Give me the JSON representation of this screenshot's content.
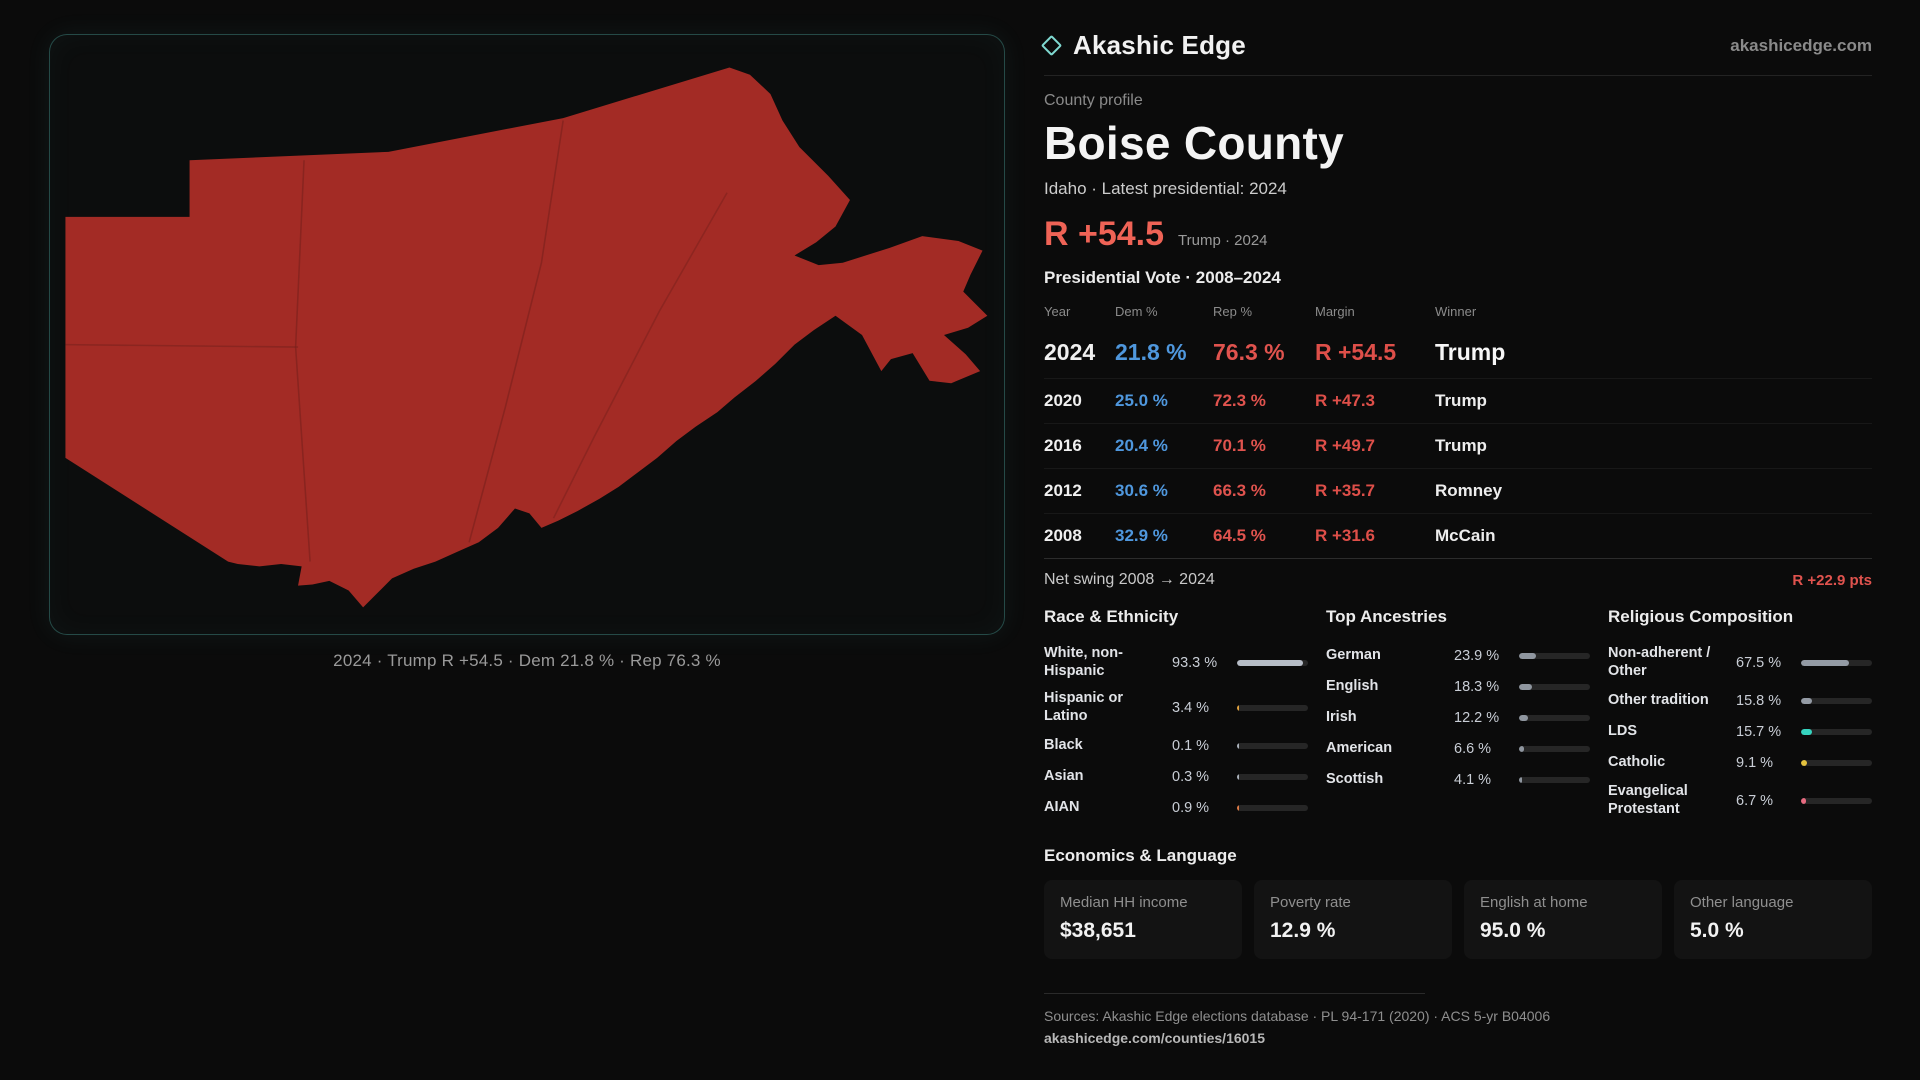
{
  "brand": {
    "name": "Akashic Edge",
    "domain": "akashicedge.com"
  },
  "map": {
    "fill": "#a32b25",
    "caption": "2024 · Trump R +54.5 · Dem 21.8 % · Rep 76.3 %"
  },
  "profile": {
    "kicker": "County profile",
    "title": "Boise County",
    "subtitle": "Idaho · Latest presidential: 2024",
    "margin_value": "R +54.5",
    "margin_note": "Trump · 2024",
    "table_title": "Presidential Vote · 2008–2024"
  },
  "table": {
    "headers": [
      "Year",
      "Dem %",
      "Rep %",
      "Margin",
      "Winner"
    ],
    "rows": [
      {
        "year": "2024",
        "dem": "21.8 %",
        "rep": "76.3 %",
        "margin": "R +54.5",
        "winner": "Trump"
      },
      {
        "year": "2020",
        "dem": "25.0 %",
        "rep": "72.3 %",
        "margin": "R +47.3",
        "winner": "Trump"
      },
      {
        "year": "2016",
        "dem": "20.4 %",
        "rep": "70.1 %",
        "margin": "R +49.7",
        "winner": "Trump"
      },
      {
        "year": "2012",
        "dem": "30.6 %",
        "rep": "66.3 %",
        "margin": "R +35.7",
        "winner": "Romney"
      },
      {
        "year": "2008",
        "dem": "32.9 %",
        "rep": "64.5 %",
        "margin": "R +31.6",
        "winner": "McCain"
      }
    ]
  },
  "net_swing": {
    "label": "Net swing 2008 → 2024",
    "value": "R +22.9 pts"
  },
  "demographics": {
    "race": {
      "title": "Race & Ethnicity",
      "rows": [
        {
          "label": "White, non-Hispanic",
          "value": "93.3 %",
          "pct": 93.3,
          "color": "#b7bdc7"
        },
        {
          "label": "Hispanic or Latino",
          "value": "3.4 %",
          "pct": 3.4,
          "color": "#e2a23e"
        },
        {
          "label": "Black",
          "value": "0.1 %",
          "pct": 0.1,
          "color": "#aab1bb"
        },
        {
          "label": "Asian",
          "value": "0.3 %",
          "pct": 0.3,
          "color": "#aab1bb"
        },
        {
          "label": "AIAN",
          "value": "0.9 %",
          "pct": 0.9,
          "color": "#de7a46"
        }
      ]
    },
    "ancestries": {
      "title": "Top Ancestries",
      "rows": [
        {
          "label": "German",
          "value": "23.9 %",
          "pct": 23.9,
          "color": "#8f969f"
        },
        {
          "label": "English",
          "value": "18.3 %",
          "pct": 18.3,
          "color": "#8f969f"
        },
        {
          "label": "Irish",
          "value": "12.2 %",
          "pct": 12.2,
          "color": "#8f969f"
        },
        {
          "label": "American",
          "value": "6.6 %",
          "pct": 6.6,
          "color": "#8f969f"
        },
        {
          "label": "Scottish",
          "value": "4.1 %",
          "pct": 4.1,
          "color": "#8f969f"
        }
      ]
    },
    "religion": {
      "title": "Religious Composition",
      "rows": [
        {
          "label": "Non-adherent / Other",
          "value": "67.5 %",
          "pct": 67.5,
          "color": "#949ba5"
        },
        {
          "label": "Other tradition",
          "value": "15.8 %",
          "pct": 15.8,
          "color": "#949ba5"
        },
        {
          "label": "LDS",
          "value": "15.7 %",
          "pct": 15.7,
          "color": "#35d3bf"
        },
        {
          "label": "Catholic",
          "value": "9.1 %",
          "pct": 9.1,
          "color": "#e4c23e"
        },
        {
          "label": "Evangelical Protestant",
          "value": "6.7 %",
          "pct": 6.7,
          "color": "#e76b80"
        }
      ]
    }
  },
  "economics": {
    "title": "Economics & Language",
    "stats": [
      {
        "label": "Median HH income",
        "value": "$38,651"
      },
      {
        "label": "Poverty rate",
        "value": "12.9 %"
      },
      {
        "label": "English at home",
        "value": "95.0 %"
      },
      {
        "label": "Other language",
        "value": "5.0 %"
      }
    ]
  },
  "footer": {
    "sources": "Sources: Akashic Edge elections database · PL 94-171 (2020) · ACS 5-yr B04006",
    "url": "akashicedge.com/counties/16015"
  }
}
